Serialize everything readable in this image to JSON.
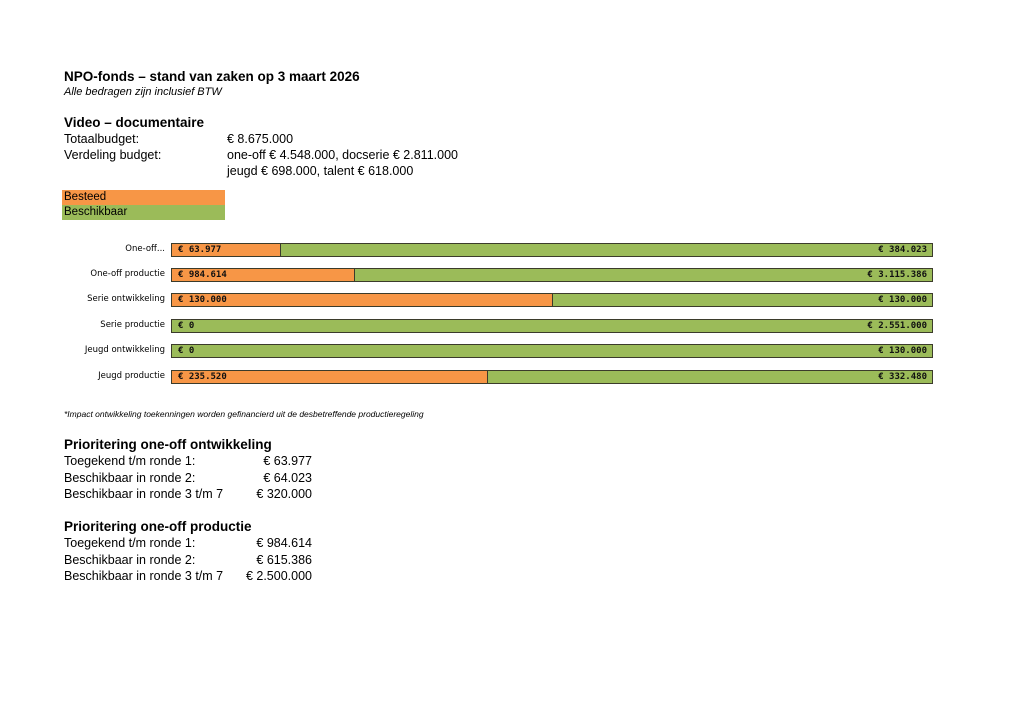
{
  "header": {
    "title": "NPO-fonds – stand van zaken op 3 maart 2026",
    "subtitle": "Alle bedragen zijn inclusief BTW"
  },
  "section": {
    "title": "Video –  documentaire",
    "total_label": "Totaalbudget:",
    "total_value": "€ 8.675.000",
    "split_label": "Verdeling budget:",
    "split_line1": "one-off € 4.548.000, docserie € 2.811.000",
    "split_line2": "jeugd € 698.000, talent € 618.000"
  },
  "colors": {
    "besteed": "#F79646",
    "beschikbaar": "#9BBB59"
  },
  "chart_data": {
    "type": "bar",
    "orientation": "horizontal",
    "stacked": "100%",
    "legend_placement": "top-left",
    "categories": [
      "One-off...",
      "One-off productie",
      "Serie ontwikkeling",
      "Serie productie",
      "Jeugd ontwikkeling",
      "Jeugd productie"
    ],
    "series": [
      {
        "name": "Besteed",
        "values": [
          63977,
          984614,
          130000,
          0,
          0,
          235520
        ],
        "labels": [
          "€ 63.977",
          "€ 984.614",
          "€ 130.000",
          "€ 0",
          "€ 0",
          "€ 235.520"
        ]
      },
      {
        "name": "Beschikbaar",
        "values": [
          384023,
          3115386,
          130000,
          2551000,
          130000,
          332480
        ],
        "labels": [
          "€ 384.023",
          "€ 3.115.386",
          "€ 130.000",
          "€ 2.551.000",
          "€ 130.000",
          "€ 332.480"
        ]
      }
    ],
    "grid": false
  },
  "footnote": "*Impact ontwikkeling toekenningen worden gefinancierd uit de desbetreffende productieregeling",
  "prio1": {
    "title": "Prioritering one-off ontwikkeling",
    "rows": [
      {
        "k": "Toegekend t/m ronde 1:",
        "v": "€ 63.977"
      },
      {
        "k": "Beschikbaar in ronde 2:",
        "v": "€ 64.023"
      },
      {
        "k": "Beschikbaar in ronde 3 t/m 7",
        "v": "€ 320.000"
      }
    ]
  },
  "prio2": {
    "title": "Prioritering one-off productie",
    "rows": [
      {
        "k": "Toegekend t/m ronde 1:",
        "v": "€ 984.614"
      },
      {
        "k": "Beschikbaar in ronde 2:",
        "v": "€ 615.386"
      },
      {
        "k": "Beschikbaar in ronde 3 t/m 7",
        "v": "€ 2.500.000"
      }
    ]
  }
}
